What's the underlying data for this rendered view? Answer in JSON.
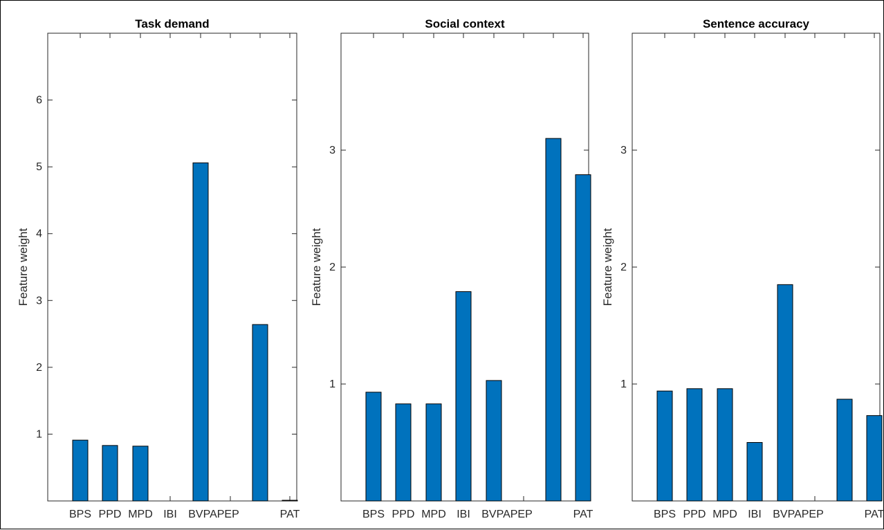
{
  "chart_data": [
    {
      "type": "bar",
      "title": "Task demand",
      "ylabel": "Feature weight",
      "xlabel": "",
      "categories": [
        "BPS",
        "PPD",
        "MPD",
        "IBI",
        "BVP",
        "PA",
        "PEP",
        "PAT"
      ],
      "tick_labels": [
        "BPS",
        "PPD",
        "MPD",
        "IBI",
        "BVPAPEP",
        "PAT"
      ],
      "values": [
        0.91,
        0.83,
        0.82,
        0.0,
        5.06,
        0.0,
        2.64,
        0.01
      ],
      "ylim": [
        0,
        7
      ],
      "yticks": [
        "1",
        "2",
        "3",
        "4",
        "5",
        "6"
      ],
      "grid": false,
      "bar_color": "#0072bd"
    },
    {
      "type": "bar",
      "title": "Social context",
      "ylabel": "Feature weight",
      "xlabel": "",
      "categories": [
        "BPS",
        "PPD",
        "MPD",
        "IBI",
        "BVP",
        "PA",
        "PEP",
        "PAT"
      ],
      "tick_labels": [
        "BPS",
        "PPD",
        "MPD",
        "IBI",
        "BVPAPEP",
        "PAT"
      ],
      "values": [
        0.93,
        0.83,
        0.83,
        1.79,
        1.03,
        0.0,
        3.1,
        2.79
      ],
      "ylim": [
        0,
        4
      ],
      "yticks": [
        "1",
        "2",
        "3"
      ],
      "grid": false,
      "bar_color": "#0072bd"
    },
    {
      "type": "bar",
      "title": "Sentence accuracy",
      "ylabel": "Feature weight",
      "xlabel": "",
      "categories": [
        "BPS",
        "PPD",
        "MPD",
        "IBI",
        "BVP",
        "PA",
        "PEP",
        "PAT"
      ],
      "tick_labels": [
        "BPS",
        "PPD",
        "MPD",
        "IBI",
        "BVPAPEP",
        "PAT"
      ],
      "values": [
        0.94,
        0.96,
        0.96,
        0.5,
        1.85,
        0.0,
        0.87,
        0.73
      ],
      "ylim": [
        0,
        4
      ],
      "yticks": [
        "1",
        "2",
        "3"
      ],
      "grid": false,
      "bar_color": "#0072bd"
    }
  ]
}
